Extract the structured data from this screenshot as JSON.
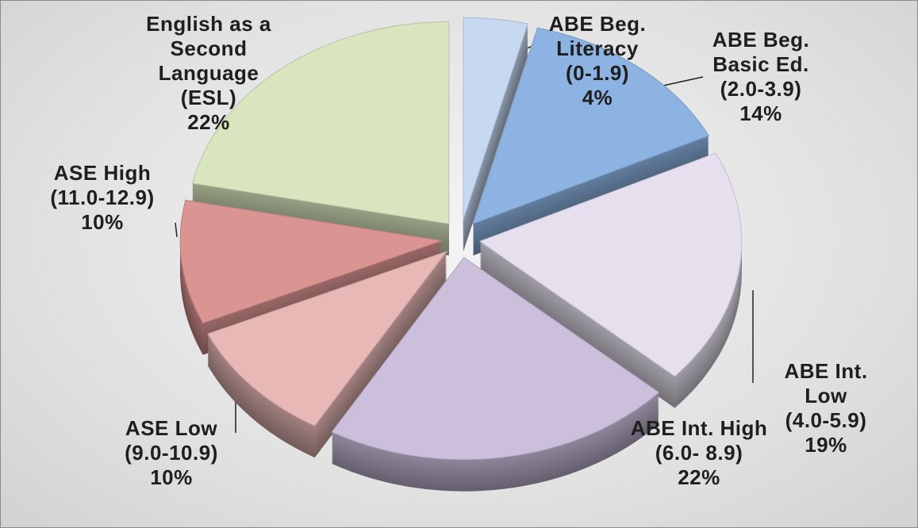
{
  "chart_data": {
    "type": "pie",
    "categories": [
      "ABE Beg.\nLiteracy\n(0-1.9)",
      "ABE Beg.\nBasic Ed.\n(2.0-3.9)",
      "ABE Int. Low\n(4.0-5.9)",
      "ABE  Int. High\n(6.0- 8.9)",
      "ASE Low\n(9.0-10.9)",
      "ASE High\n(11.0-12.9)",
      "English as a\nSecond\nLanguage\n(ESL)"
    ],
    "values": [
      4,
      14,
      19,
      22,
      10,
      10,
      22
    ],
    "value_labels": [
      "4%",
      "14%",
      "19%",
      "22%",
      "10%",
      "10%",
      "22%"
    ],
    "colors": [
      "#c6d9f1",
      "#8db3e2",
      "#e6e0ee",
      "#cbbfdc",
      "#e8b8b7",
      "#da9492",
      "#d8e5be"
    ]
  }
}
